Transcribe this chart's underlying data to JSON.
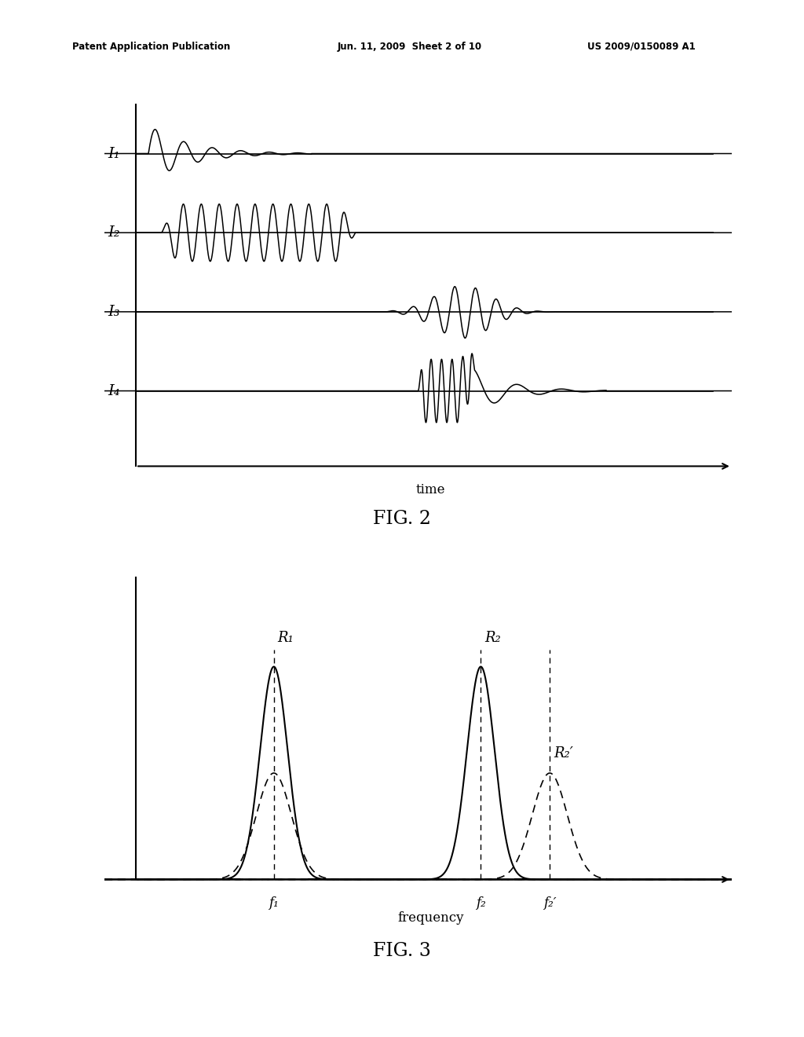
{
  "bg_color": "#ffffff",
  "header_left": "Patent Application Publication",
  "header_mid": "Jun. 11, 2009  Sheet 2 of 10",
  "header_right": "US 2009/0150089 A1",
  "fig2_title": "FIG. 2",
  "fig3_title": "FIG. 3",
  "fig2_xlabel": "time",
  "fig3_xlabel": "frequency",
  "signal_labels": [
    "I₁",
    "I₂",
    "I₃",
    "I₄"
  ],
  "fig3_R1_label": "R₁",
  "fig3_R2_label": "R₂",
  "fig3_R2p_label": "R₂′",
  "fig3_f1_label": "f₁",
  "fig3_f2_label": "f₂",
  "fig3_f2p_label": "f₂′"
}
